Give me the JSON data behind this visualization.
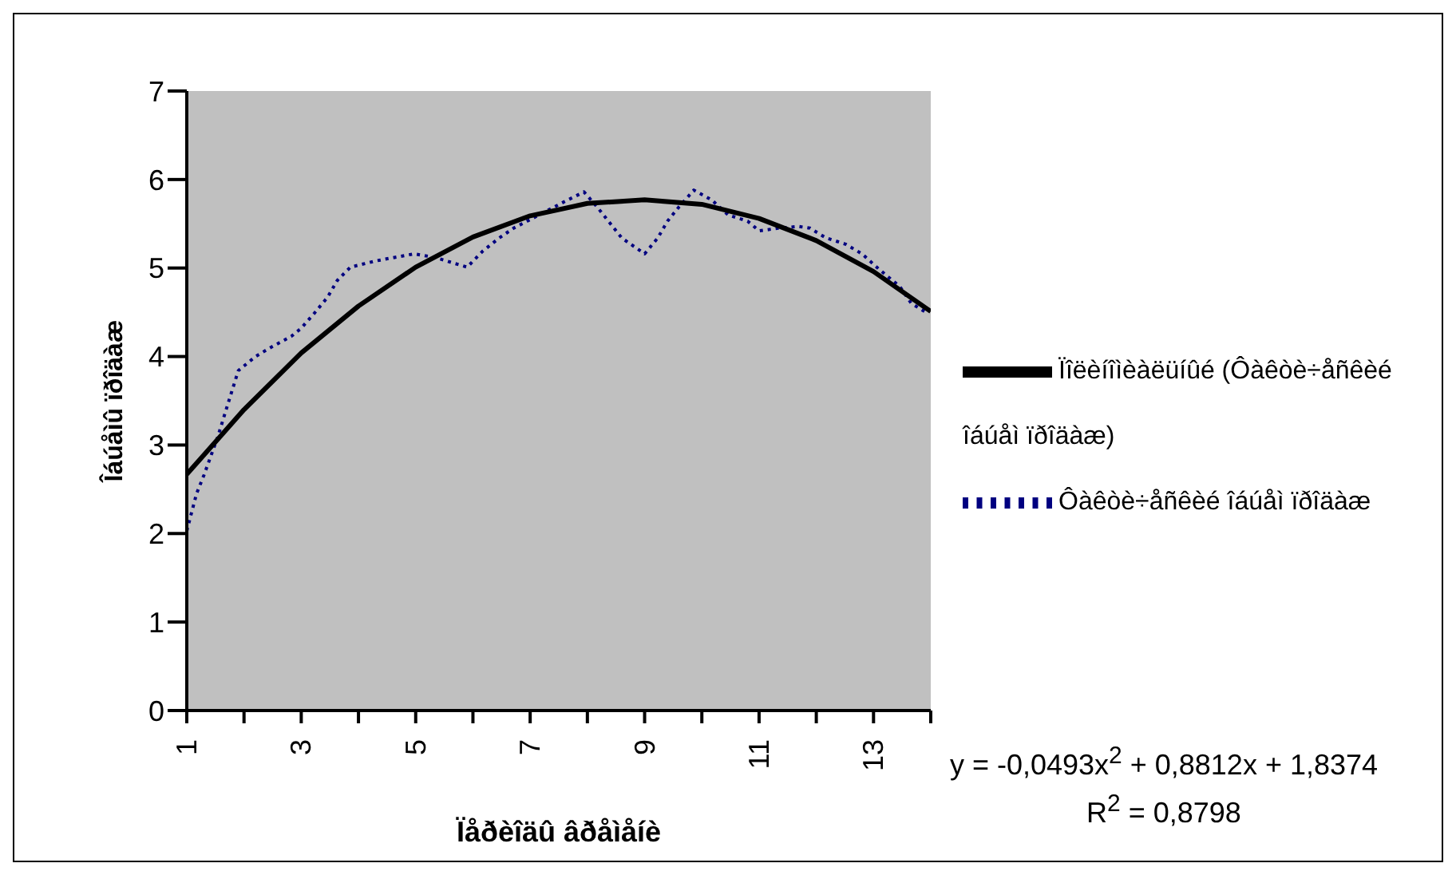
{
  "chart_data": {
    "type": "line",
    "xlabel": "Ïåðèîäû âðåìåíè",
    "ylabel": "Îáúåìû ïðîäàæ",
    "xlim": [
      1,
      14
    ],
    "xticks": [
      1,
      {
        "value": 2,
        "label": null
      },
      3,
      {
        "value": 4,
        "label": null
      },
      5,
      {
        "value": 6,
        "label": null
      },
      7,
      {
        "value": 8,
        "label": null
      },
      9,
      {
        "value": 10,
        "label": null
      },
      11,
      {
        "value": 12,
        "label": null
      },
      13,
      {
        "value": 14,
        "label": null
      }
    ],
    "ylim": [
      0,
      7
    ],
    "yticks": [
      0,
      1,
      2,
      3,
      4,
      5,
      6,
      7
    ],
    "grid": false,
    "legend": "right",
    "marker": "none",
    "series": [
      {
        "name": "Ôàêòè÷åñêèé îáúåì ïðîäàæ",
        "color": "#000080",
        "line_style": "dotted",
        "x": [
          1,
          1.17,
          1.3,
          1.54,
          1.75,
          1.9,
          2.2,
          2.46,
          2.83,
          3,
          3.23,
          3.46,
          3.63,
          3.86,
          4.3,
          4.63,
          4.97,
          5.34,
          5.69,
          5.9,
          6.17,
          6.46,
          6.71,
          7.6,
          7.94,
          8.17,
          8.6,
          9,
          9.23,
          9.4,
          9.6,
          9.86,
          10.17,
          10.46,
          10.8,
          11,
          11.34,
          11.69,
          11.89,
          12.17,
          12.51,
          12.8,
          13.09,
          13.46,
          13.66,
          13.94
        ],
        "values": [
          2.03,
          2.45,
          2.66,
          3.09,
          3.53,
          3.84,
          4.0,
          4.1,
          4.23,
          4.32,
          4.49,
          4.67,
          4.86,
          5.01,
          5.08,
          5.12,
          5.16,
          5.12,
          5.05,
          5.01,
          5.19,
          5.34,
          5.45,
          5.75,
          5.86,
          5.69,
          5.34,
          5.16,
          5.34,
          5.53,
          5.69,
          5.88,
          5.77,
          5.6,
          5.53,
          5.42,
          5.45,
          5.47,
          5.45,
          5.34,
          5.27,
          5.16,
          4.99,
          4.79,
          4.6,
          4.49
        ]
      },
      {
        "name": "Ïîëèíîìèàëüíûé (Ôàêòè÷åñêèé îáúåì ïðîäàæ)",
        "type": "line",
        "color": "#000000",
        "line_style": "solid",
        "x": [
          1,
          2,
          3,
          4,
          5,
          6,
          7,
          8,
          9,
          10,
          11,
          12,
          13,
          14
        ],
        "values": [
          2.67,
          3.4,
          4.04,
          4.57,
          5.01,
          5.35,
          5.59,
          5.73,
          5.77,
          5.72,
          5.56,
          5.31,
          4.96,
          4.51
        ]
      }
    ],
    "annotations": [
      "y = -0,0493x$^{2}$ + 0,8812x + 1,8374",
      "R$^{2}$ = 0,8798"
    ]
  }
}
